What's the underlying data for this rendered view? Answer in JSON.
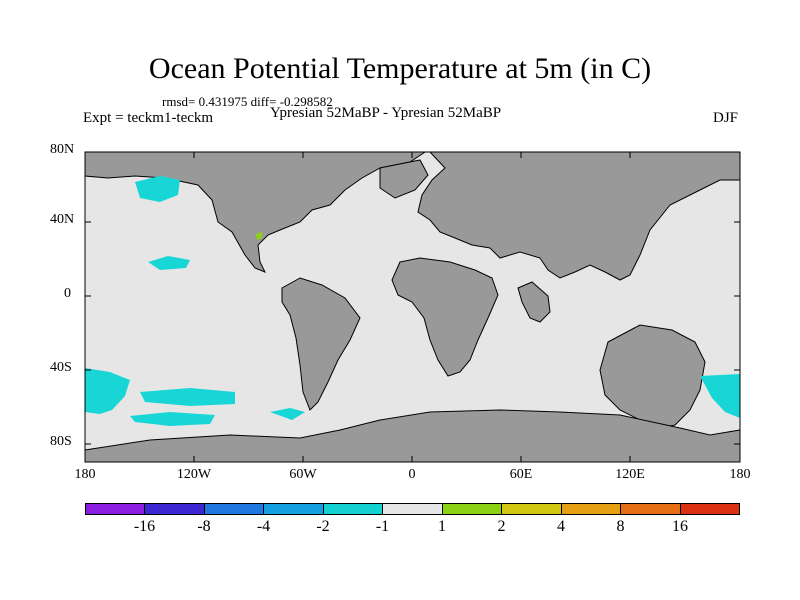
{
  "title": "Ocean Potential Temperature at 5m (in C)",
  "stats": "rmsd= 0.431975 diff= -0.298582",
  "expt": "Expt = teckm1-teckm",
  "center_label": "Ypresian  52MaBP - Ypresian  52MaBP",
  "season": "DJF",
  "lat_labels": [
    "80N",
    "40N",
    "0",
    "40S",
    "80S"
  ],
  "lon_labels": [
    "180",
    "120W",
    "60W",
    "0",
    "60E",
    "120E",
    "180"
  ],
  "colorbar": {
    "colors": [
      "#8c1ee0",
      "#3c28d2",
      "#1e78e0",
      "#14a0e0",
      "#14d2d2",
      "#e6e6e6",
      "#8cd214",
      "#d2c814",
      "#e6a014",
      "#e66e14",
      "#dc3214"
    ],
    "labels": [
      "-16",
      "-8",
      "-4",
      "-2",
      "-1",
      "1",
      "2",
      "4",
      "8",
      "16"
    ]
  },
  "colors": {
    "ocean": "#e6e6e6",
    "land": "#999999",
    "anomaly": "#19d6d6"
  }
}
